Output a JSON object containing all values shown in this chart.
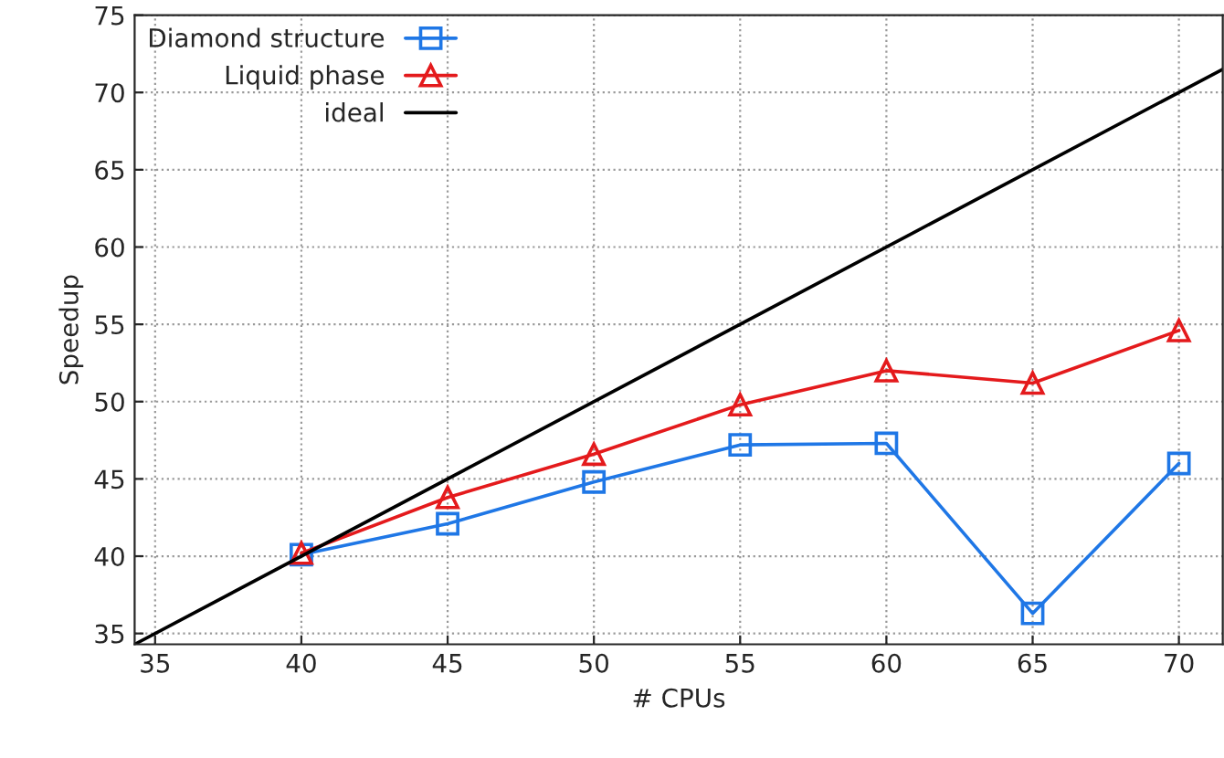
{
  "chart_data": {
    "type": "line",
    "xlabel": "# CPUs",
    "ylabel": "Speedup",
    "xlim": [
      34.3,
      71.5
    ],
    "ylim": [
      34.3,
      75
    ],
    "xticks": [
      35,
      40,
      45,
      50,
      55,
      60,
      65,
      70
    ],
    "yticks": [
      35,
      40,
      45,
      50,
      55,
      60,
      65,
      70,
      75
    ],
    "grid": true,
    "legend": "top left",
    "series": [
      {
        "name": "Diamond structure",
        "color": "#1f77e6",
        "marker": "square",
        "x": [
          40,
          45,
          50,
          55,
          60,
          65,
          70
        ],
        "values": [
          40.1,
          42.1,
          44.8,
          47.2,
          47.3,
          36.3,
          46.0
        ]
      },
      {
        "name": "Liquid phase",
        "color": "#e41a1c",
        "marker": "triangle",
        "x": [
          40,
          45,
          50,
          55,
          60,
          65,
          70
        ],
        "values": [
          40.2,
          43.8,
          46.6,
          49.8,
          52.0,
          51.2,
          54.6
        ]
      },
      {
        "name": "ideal",
        "color": "#000000",
        "marker": "none",
        "x": [
          34.3,
          71.5
        ],
        "values": [
          34.3,
          71.5
        ]
      }
    ]
  }
}
